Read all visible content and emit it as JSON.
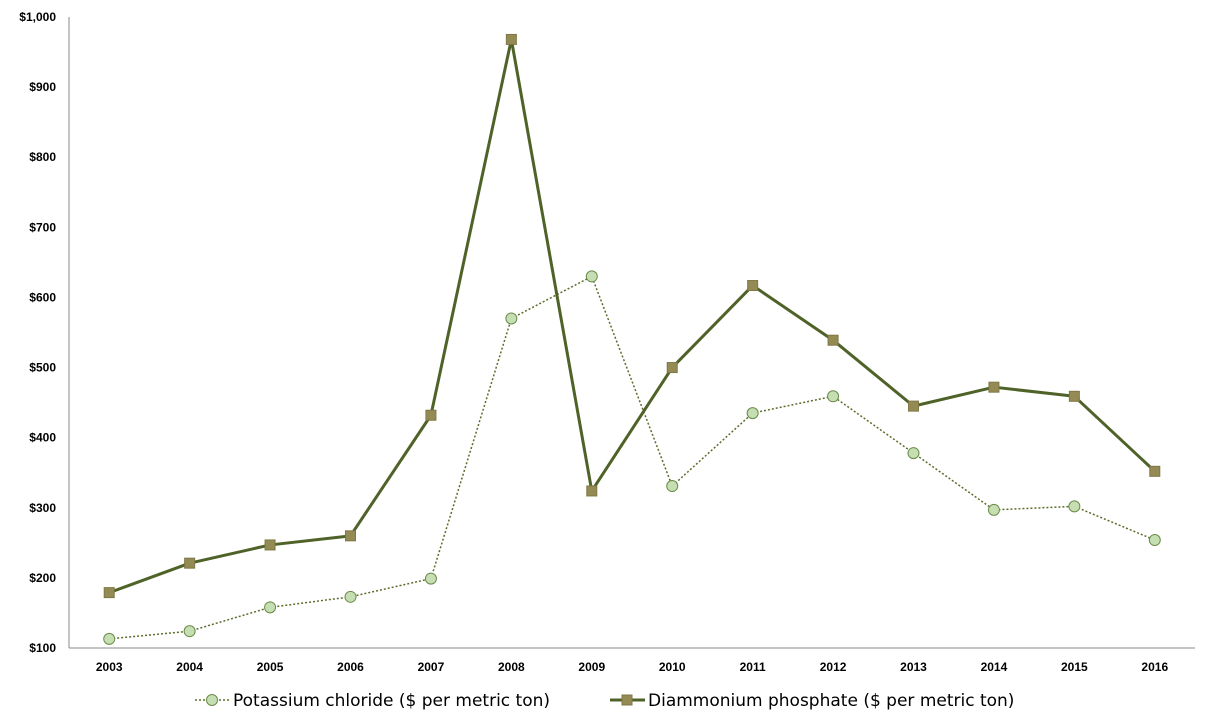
{
  "chart_data": {
    "type": "line",
    "title": "",
    "xlabel": "",
    "ylabel": "",
    "categories": [
      "2003",
      "2004",
      "2005",
      "2006",
      "2007",
      "2008",
      "2009",
      "2010",
      "2011",
      "2012",
      "2013",
      "2014",
      "2015",
      "2016"
    ],
    "ylim": [
      100,
      1000
    ],
    "yticks": [
      100,
      200,
      300,
      400,
      500,
      600,
      700,
      800,
      900,
      1000
    ],
    "ytick_labels": [
      "$100",
      "$200",
      "$300",
      "$400",
      "$500",
      "$600",
      "$700",
      "$800",
      "$900",
      "$1,000"
    ],
    "grid": false,
    "legend": "bottom",
    "series": [
      {
        "name": "Potassium chloride ($ per metric ton)",
        "values": [
          113,
          124,
          158,
          173,
          199,
          570,
          630,
          331,
          435,
          459,
          378,
          297,
          302,
          254
        ],
        "color": "#5a6e2a",
        "marker": "circle",
        "marker_fill": "#c5dfb3",
        "line_style": "dotted"
      },
      {
        "name": "Diammonium phosphate ($ per metric ton)",
        "values": [
          179,
          221,
          247,
          260,
          432,
          968,
          324,
          500,
          617,
          539,
          445,
          472,
          459,
          352
        ],
        "color": "#4f6228",
        "marker": "square",
        "marker_fill": "#948a54",
        "line_style": "solid"
      }
    ]
  }
}
